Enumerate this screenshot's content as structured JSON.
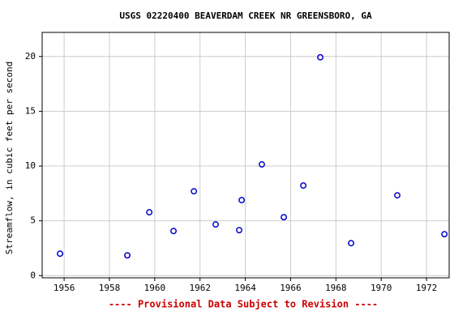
{
  "chart_data": {
    "type": "scatter",
    "title": "USGS 02220400 BEAVERDAM CREEK NR GREENSBORO, GA",
    "ylabel": "Streamflow, in cubic feet per second",
    "footer": "---- Provisional Data Subject to Revision ----",
    "x": [
      1955.82,
      1958.79,
      1959.76,
      1960.83,
      1961.73,
      1962.69,
      1963.73,
      1963.84,
      1964.73,
      1965.7,
      1966.56,
      1967.31,
      1968.67,
      1970.71,
      1972.79
    ],
    "values": [
      2.0,
      1.85,
      5.78,
      4.07,
      7.7,
      4.67,
      4.15,
      6.89,
      10.15,
      5.33,
      8.22,
      19.93,
      2.96,
      7.33,
      3.78
    ],
    "color": "#0000cc",
    "xlim": [
      1955.03,
      1973.0
    ],
    "xticks": [
      1956,
      1958,
      1960,
      1962,
      1964,
      1966,
      1968,
      1970,
      1972
    ],
    "ylim": [
      -0.2,
      22.2
    ],
    "yticks": [
      0,
      5,
      10,
      15,
      20
    ],
    "grid": true
  }
}
